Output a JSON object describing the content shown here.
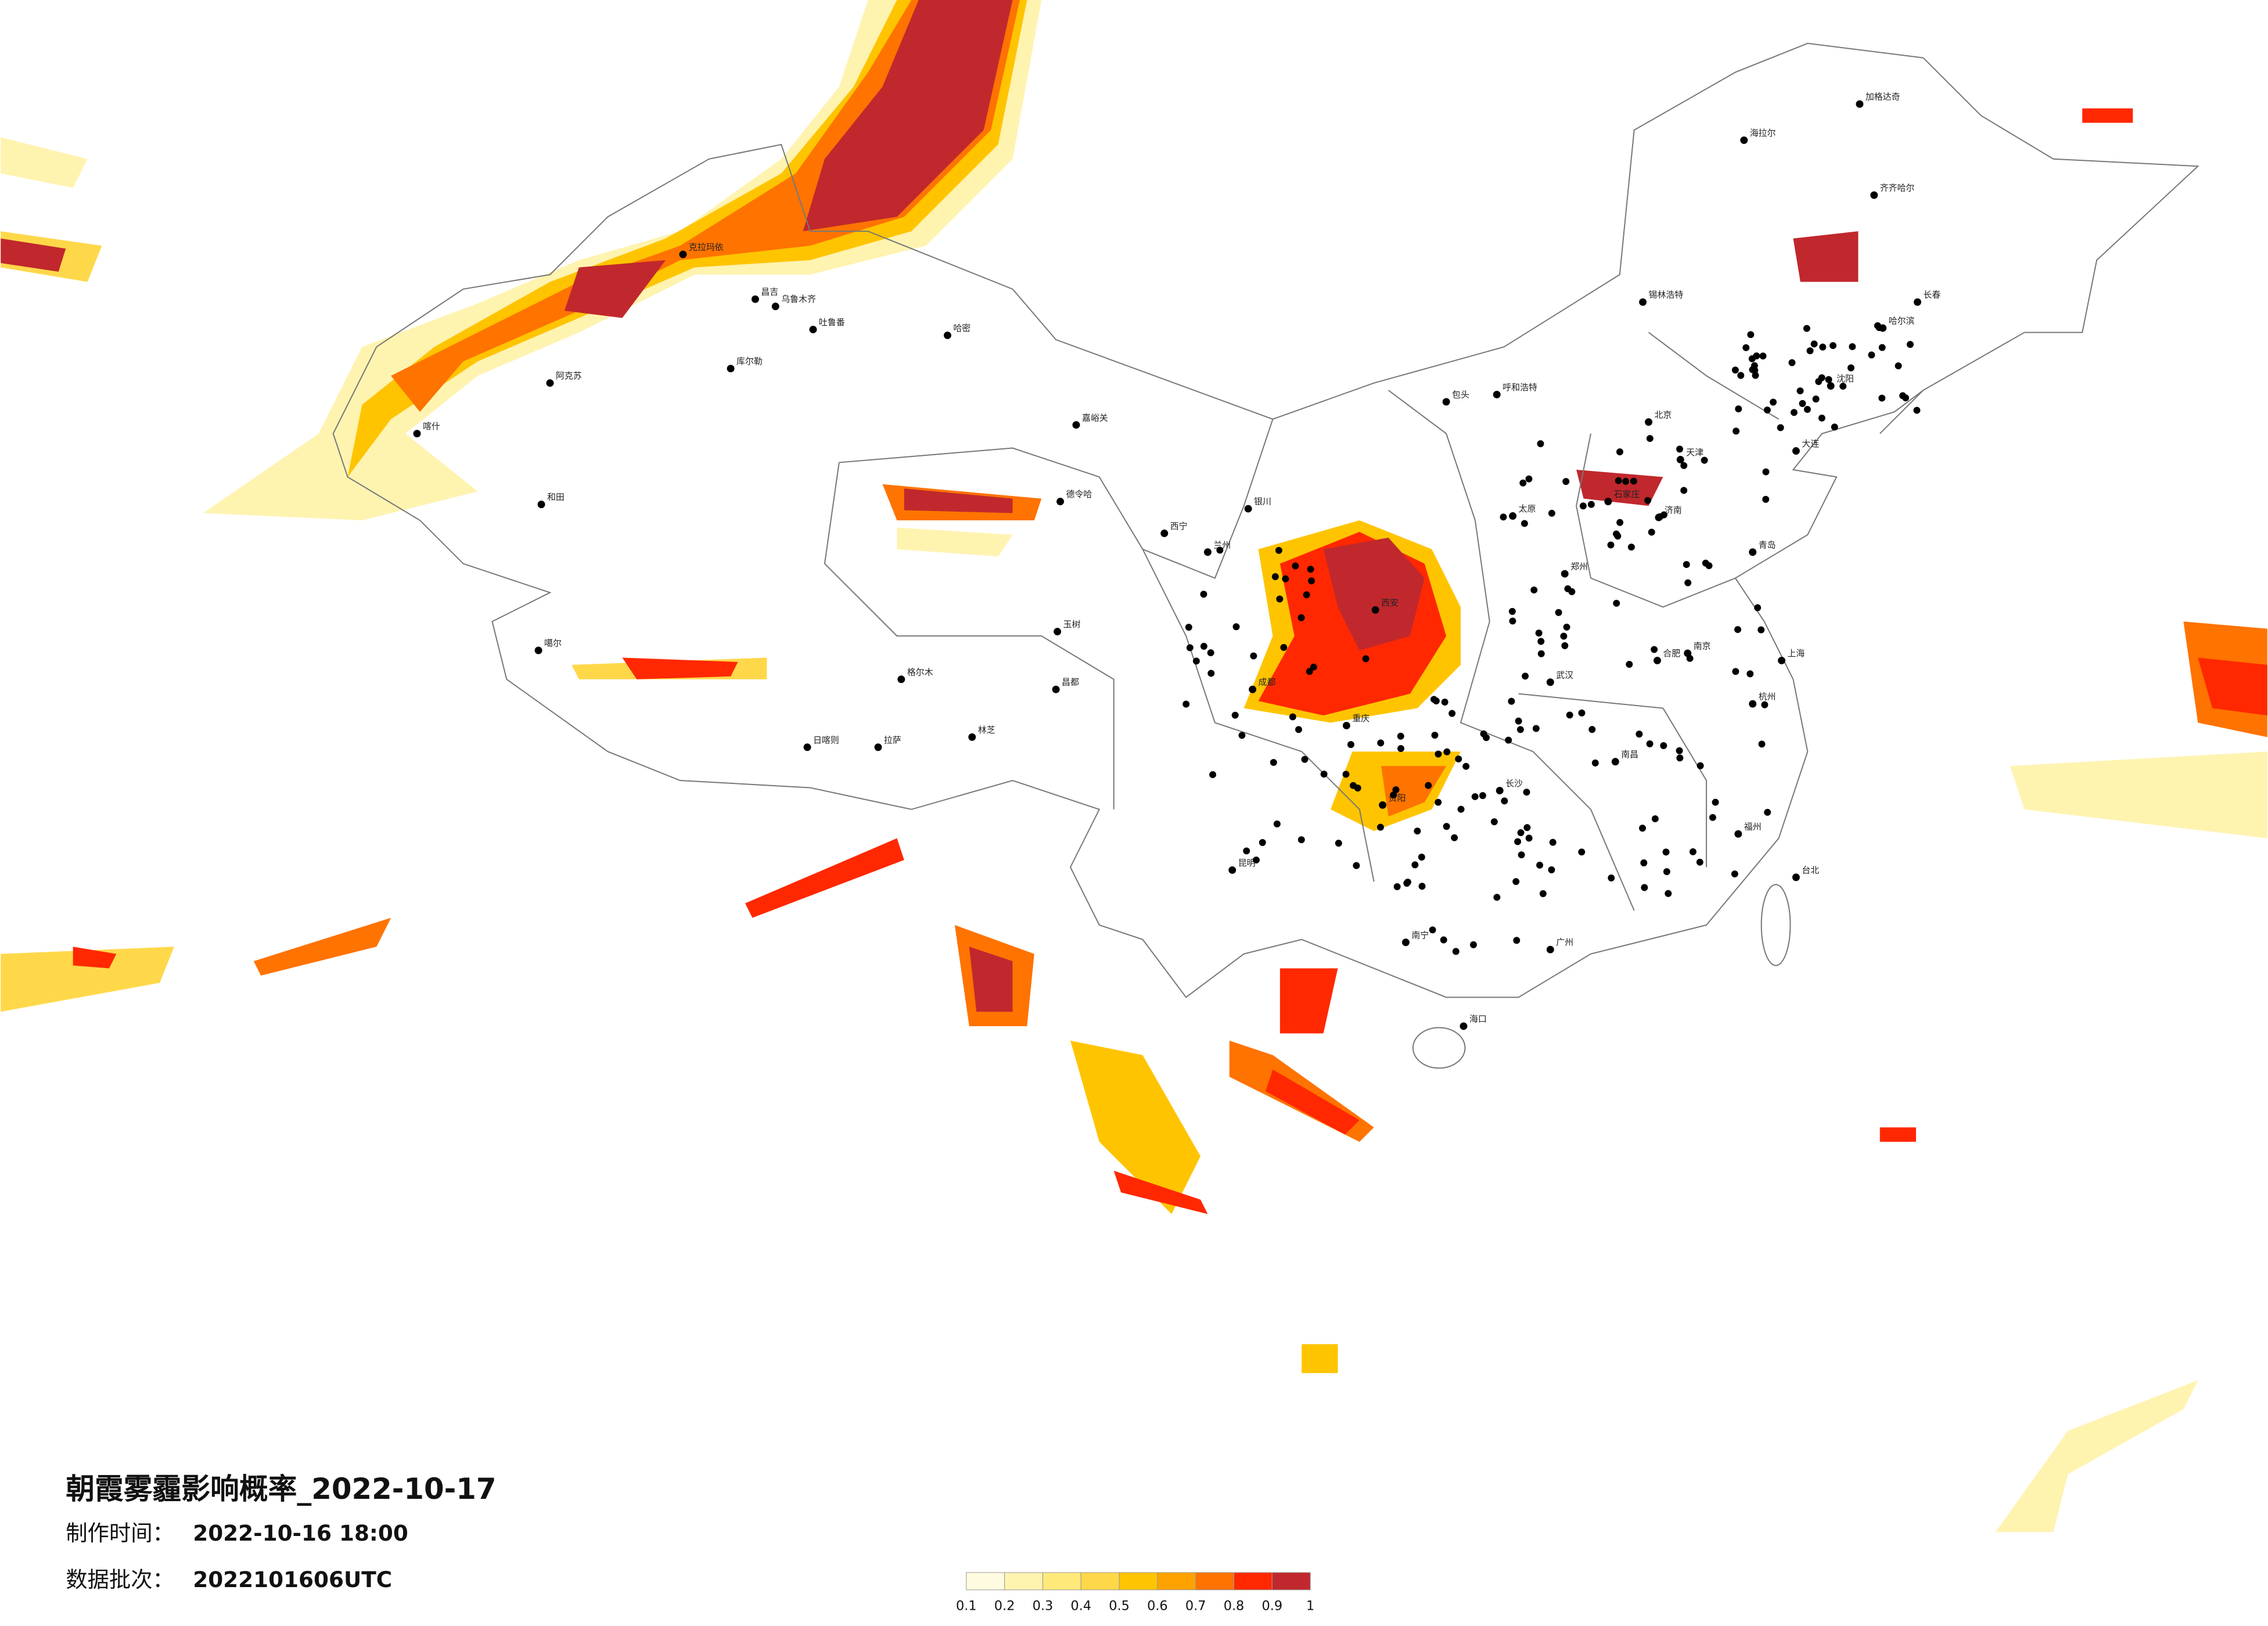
{
  "header": {
    "title": "朝霞雾霾影响概率_2022-10-17",
    "made_label": "制作时间：",
    "made_value": "2022-10-16 18:00",
    "batch_label": "数据批次：",
    "batch_value": "2022101606UTC"
  },
  "legend": {
    "ticks": [
      0.1,
      0.2,
      0.3,
      0.4,
      0.5,
      0.6,
      0.7,
      0.8,
      0.9,
      1
    ],
    "colors": [
      "#fffbe0",
      "#fff3b0",
      "#ffe97a",
      "#ffd84a",
      "#ffc400",
      "#ffa200",
      "#ff7300",
      "#ff2800",
      "#c0282d"
    ]
  },
  "cities": [
    "克拉玛依",
    "昌吉",
    "乌鲁木齐",
    "吐鲁番",
    "哈密",
    "阿克苏",
    "库尔勒",
    "喀什",
    "和田",
    "噶尔",
    "日喀则",
    "拉萨",
    "林芝",
    "昌都",
    "玉树",
    "格尔木",
    "德令哈",
    "嘉峪关",
    "西宁",
    "兰州",
    "银川",
    "呼和浩特",
    "包头",
    "北京",
    "天津",
    "石家庄",
    "太原",
    "西安",
    "郑州",
    "济南",
    "青岛",
    "南京",
    "上海",
    "杭州",
    "合肥",
    "武汉",
    "长沙",
    "南昌",
    "福州",
    "台北",
    "广州",
    "南宁",
    "海口",
    "贵阳",
    "昆明",
    "成都",
    "重庆",
    "哈尔滨",
    "长春",
    "沈阳",
    "大连",
    "齐齐哈尔",
    "海拉尔",
    "锡林浩特",
    "加格达奇"
  ]
}
